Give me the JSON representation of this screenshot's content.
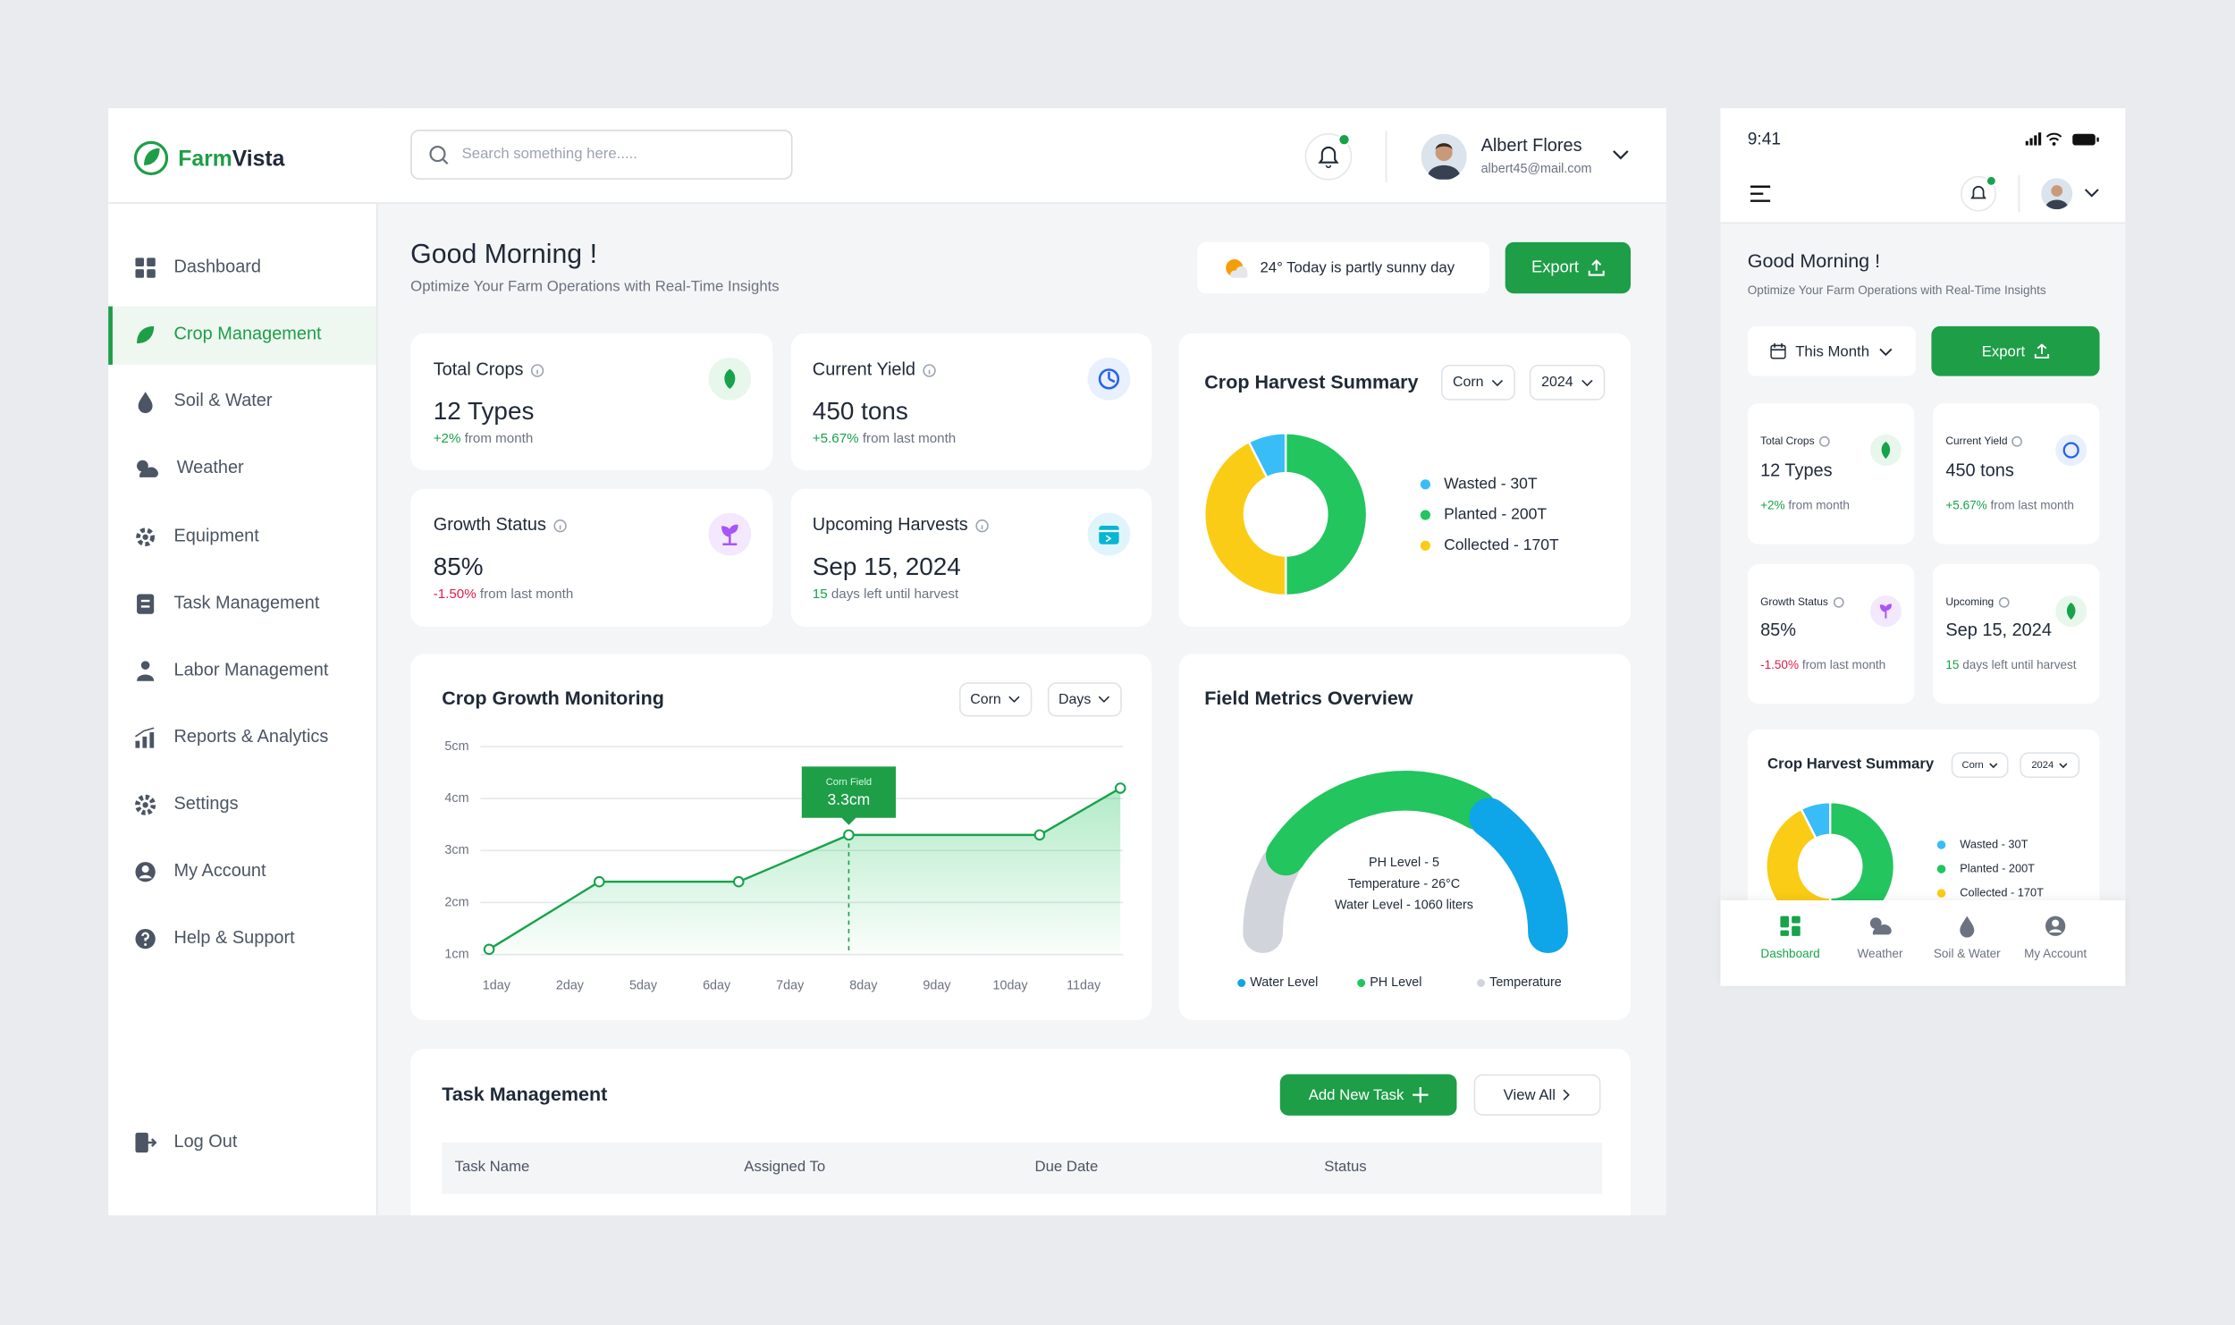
{
  "brand": {
    "first": "Farm",
    "second": "Vista"
  },
  "search_placeholder": "Search something here.....",
  "user": {
    "name": "Albert Flores",
    "email": "albert45@mail.com"
  },
  "nav": [
    "Dashboard",
    "Crop Management",
    "Soil & Water",
    "Weather",
    "Equipment",
    "Task Management",
    "Labor Management",
    "Reports & Analytics",
    "Settings",
    "My Account",
    "Help & Support"
  ],
  "logout": "Log Out",
  "greeting": "Good Morning !",
  "subtitle": "Optimize Your Farm Operations with Real-Time Insights",
  "weather": "24° Today is partly sunny day",
  "export": "Export",
  "stats": [
    {
      "label": "Total Crops",
      "value": "12 Types",
      "change": "+2%",
      "note": "from month"
    },
    {
      "label": "Current Yield",
      "value": "450 tons",
      "change": "+5.67%",
      "note": "from last month"
    },
    {
      "label": "Growth Status",
      "value": "85%",
      "change": "-1.50%",
      "note": "from last month"
    },
    {
      "label": "Upcoming Harvests",
      "value": "Sep 15, 2024",
      "change": "15",
      "note": "days left until harvest"
    }
  ],
  "chart_data": [
    {
      "type": "pie",
      "title": "Crop Harvest Summary",
      "filters": [
        "Corn",
        "2024"
      ],
      "categories": [
        "Wasted - 30T",
        "Planted - 200T",
        "Collected - 170T"
      ],
      "values": [
        30,
        200,
        170
      ],
      "colors": [
        "#38bdf8",
        "#22c55e",
        "#facc15"
      ]
    },
    {
      "type": "line",
      "title": "Crop Growth Monitoring",
      "filters": [
        "Corn",
        "Days"
      ],
      "x": [
        -0.1,
        1.4,
        3.3,
        4.8,
        7.4,
        8.5
      ],
      "values": [
        1.1,
        2.4,
        2.4,
        3.3,
        3.3,
        4.2
      ],
      "color": "#16a34a",
      "xlim": [
        -0.2,
        8.5
      ],
      "xticks": [
        {
          "value": 0,
          "label": "1day"
        },
        {
          "value": 1,
          "label": "2day"
        },
        {
          "value": 2,
          "label": "5day"
        },
        {
          "value": 3,
          "label": "6day"
        },
        {
          "value": 4,
          "label": "7day"
        },
        {
          "value": 5,
          "label": "8day"
        },
        {
          "value": 6,
          "label": "9day"
        },
        {
          "value": 7,
          "label": "10day"
        },
        {
          "value": 8,
          "label": "11day"
        }
      ],
      "ylim": [
        1,
        5
      ],
      "yticks": [
        {
          "value": 1,
          "label": "1cm"
        },
        {
          "value": 2,
          "label": "2cm"
        },
        {
          "value": 3,
          "label": "3cm"
        },
        {
          "value": 4,
          "label": "4cm"
        },
        {
          "value": 5,
          "label": "5cm"
        }
      ],
      "grid": true,
      "annotation": {
        "title": "Corn Field",
        "label": "3.3cm",
        "point": 3
      }
    }
  ],
  "field_metrics": {
    "title": "Field Metrics Overview",
    "lines": [
      "PH Level - 5",
      "Temperature - 26°C",
      "Water Level - 1060 liters"
    ],
    "legend": [
      "Water Level",
      "PH Level",
      "Temperature"
    ]
  },
  "tasks": {
    "title": "Task Management",
    "add": "Add New Task",
    "view_all": "View All",
    "columns": [
      "Task Name",
      "Assigned To",
      "Due Date",
      "Status"
    ]
  },
  "mobile": {
    "time": "9:41",
    "this_month": "This Month",
    "upcoming_label": "Upcoming",
    "tabs": [
      "Dashboard",
      "Weather",
      "Soil & Water",
      "My Account"
    ]
  }
}
